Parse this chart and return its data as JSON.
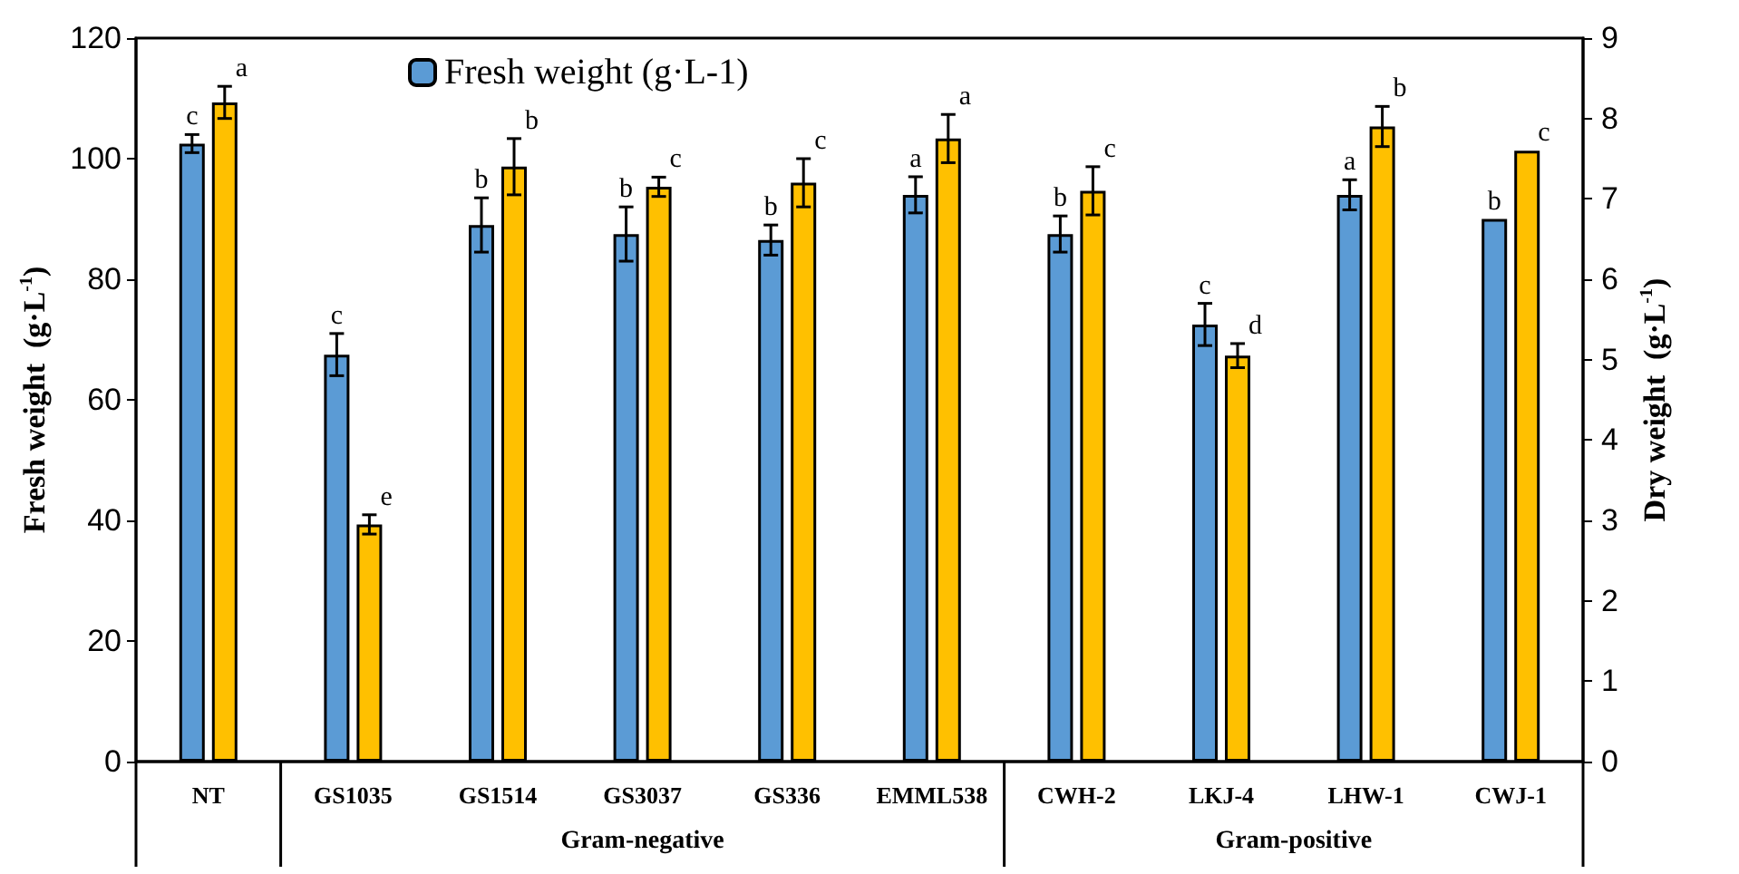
{
  "chart_data": {
    "type": "bar",
    "ylabel": "Fresh weight  (g·L$^{-1}$)",
    "y2label": "Dry weight  (g·L$^{-1}$)",
    "categories": [
      "NT",
      "GS1035",
      "GS1514",
      "GS3037",
      "GS336",
      "EMML538",
      "CWH-2",
      "LKJ-4",
      "LHW-1",
      "CWJ-1"
    ],
    "series": [
      {
        "name": "Fresh weight (g·L-1)",
        "color": "#5b9bd5",
        "values": [
          102.5,
          67.5,
          89,
          87.5,
          86.5,
          94,
          87.5,
          72.5,
          94,
          90
        ],
        "errors": [
          1.5,
          3.5,
          4.5,
          4.5,
          2.5,
          3,
          3,
          3.5,
          2.5,
          null
        ],
        "value_labels": [
          "c",
          "c",
          "b",
          "b",
          "b",
          "a",
          "b",
          "c",
          "a",
          "b"
        ]
      },
      {
        "color": "#ffc000",
        "axis": "y2",
        "values": [
          8.2,
          2.95,
          7.4,
          7.15,
          7.2,
          7.75,
          7.1,
          5.05,
          7.9,
          7.6
        ],
        "errors": [
          0.2,
          0.12,
          0.35,
          0.12,
          0.3,
          0.3,
          0.3,
          0.15,
          0.25,
          null
        ],
        "value_labels": [
          "a",
          "e",
          "b",
          "c",
          "c",
          "a",
          "c",
          "d",
          "b",
          "c"
        ]
      }
    ],
    "ylim": [
      0,
      120
    ],
    "yticks": [
      0,
      20,
      40,
      60,
      80,
      100,
      120
    ],
    "y2lim": [
      0,
      9
    ],
    "y2ticks": [
      0,
      1,
      2,
      3,
      4,
      5,
      6,
      7,
      8,
      9
    ],
    "legend": "top",
    "grid": false,
    "annotations": [
      "Gram-negative",
      "Gram-positive"
    ]
  }
}
